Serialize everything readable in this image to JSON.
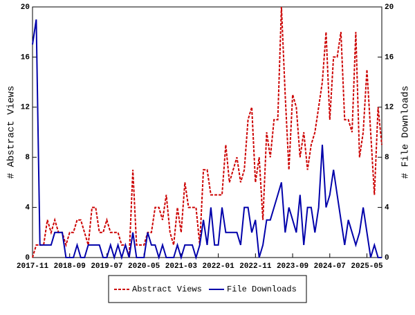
{
  "chart_data": {
    "type": "line",
    "x": [
      "2017-11",
      "2017-12",
      "2018-01",
      "2018-02",
      "2018-03",
      "2018-04",
      "2018-05",
      "2018-06",
      "2018-07",
      "2018-08",
      "2018-09",
      "2018-10",
      "2018-11",
      "2018-12",
      "2019-01",
      "2019-02",
      "2019-03",
      "2019-04",
      "2019-05",
      "2019-06",
      "2019-07",
      "2019-08",
      "2019-09",
      "2019-10",
      "2019-11",
      "2019-12",
      "2020-01",
      "2020-02",
      "2020-03",
      "2020-04",
      "2020-05",
      "2020-06",
      "2020-07",
      "2020-08",
      "2020-09",
      "2020-10",
      "2020-11",
      "2020-12",
      "2021-01",
      "2021-02",
      "2021-03",
      "2021-04",
      "2021-05",
      "2021-06",
      "2021-07",
      "2021-08",
      "2021-09",
      "2021-10",
      "2021-11",
      "2021-12",
      "2022-01",
      "2022-02",
      "2022-03",
      "2022-04",
      "2022-05",
      "2022-06",
      "2022-07",
      "2022-08",
      "2022-09",
      "2022-10",
      "2022-11",
      "2022-12",
      "2023-01",
      "2023-02",
      "2023-03",
      "2023-04",
      "2023-05",
      "2023-06",
      "2023-07",
      "2023-08",
      "2023-09",
      "2023-10",
      "2023-11",
      "2023-12",
      "2024-01",
      "2024-02",
      "2024-03",
      "2024-04",
      "2024-05",
      "2024-06",
      "2024-07",
      "2024-08",
      "2024-09",
      "2024-10",
      "2024-11",
      "2024-12",
      "2025-01",
      "2025-02",
      "2025-03",
      "2025-04",
      "2025-05",
      "2025-06",
      "2025-07",
      "2025-08",
      "2025-09"
    ],
    "xticks": [
      "2017-11",
      "2018-09",
      "2019-07",
      "2020-05",
      "2021-03",
      "2022-01",
      "2022-11",
      "2023-09",
      "2024-07",
      "2025-05"
    ],
    "ylabel": "# Abstract Views",
    "y2label": "# File Downloads",
    "ylim": [
      0,
      20
    ],
    "yticks": [
      0,
      4,
      8,
      12,
      16,
      20
    ],
    "y2lim": [
      0,
      20
    ],
    "y2ticks": [
      0,
      4,
      8,
      12,
      16,
      20
    ],
    "legend": "bottom",
    "series": [
      {
        "name": "Abstract Views",
        "color": "#cc0000",
        "style": "dashed",
        "values": [
          0,
          1,
          1,
          1,
          3,
          2,
          3,
          2,
          2,
          1,
          2,
          2,
          3,
          3,
          2,
          1,
          4,
          4,
          2,
          2,
          3,
          2,
          2,
          2,
          1,
          1,
          0,
          7,
          1,
          1,
          1,
          2,
          2,
          4,
          4,
          3,
          5,
          2,
          1,
          4,
          2,
          6,
          4,
          4,
          4,
          1,
          7,
          7,
          5,
          5,
          5,
          5,
          9,
          6,
          7,
          8,
          6,
          7,
          11,
          12,
          6,
          8,
          3,
          10,
          8,
          11,
          11,
          20,
          13,
          7,
          13,
          12,
          8,
          10,
          7,
          9,
          10,
          12,
          14,
          18,
          11,
          16,
          16,
          18,
          11,
          11,
          10,
          18,
          8,
          10,
          15,
          10,
          5,
          12,
          9
        ]
      },
      {
        "name": "File Downloads",
        "color": "#0000aa",
        "style": "solid",
        "axis": "y2",
        "values": [
          17,
          19,
          1,
          1,
          1,
          1,
          2,
          2,
          2,
          0,
          0,
          0,
          1,
          0,
          0,
          1,
          1,
          1,
          1,
          0,
          0,
          1,
          0,
          1,
          0,
          1,
          0,
          2,
          0,
          0,
          0,
          2,
          1,
          1,
          0,
          1,
          0,
          0,
          0,
          1,
          0,
          1,
          1,
          1,
          0,
          1,
          3,
          1,
          4,
          1,
          1,
          4,
          2,
          2,
          2,
          2,
          1,
          4,
          4,
          2,
          3,
          0,
          1,
          3,
          3,
          4,
          5,
          6,
          2,
          4,
          3,
          2,
          5,
          1,
          4,
          4,
          2,
          4,
          9,
          4,
          5,
          7,
          5,
          3,
          1,
          3,
          2,
          1,
          2,
          4,
          2,
          0,
          1,
          0,
          0
        ]
      }
    ]
  }
}
